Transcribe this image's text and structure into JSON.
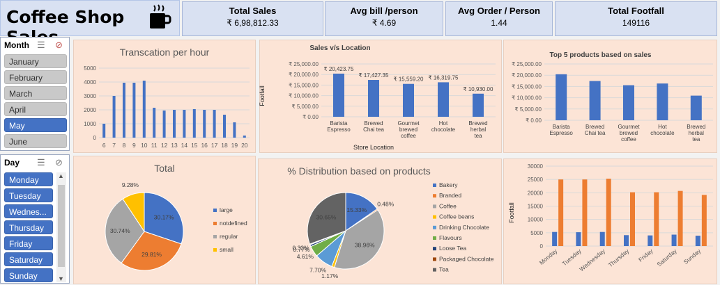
{
  "app": {
    "title": "Coffee Shop Sales"
  },
  "kpis": [
    {
      "label": "Total Sales",
      "value": "₹ 6,98,812.33"
    },
    {
      "label": "Avg bill /person",
      "value": "₹ 4.69"
    },
    {
      "label": "Avg Order / Person",
      "value": "1.44"
    },
    {
      "label": "Total Footfall",
      "value": "149116"
    }
  ],
  "month_slicer": {
    "header": "Month",
    "items": [
      {
        "label": "January",
        "selected": false
      },
      {
        "label": "February",
        "selected": false
      },
      {
        "label": "March",
        "selected": false
      },
      {
        "label": "April",
        "selected": false
      },
      {
        "label": "May",
        "selected": true
      },
      {
        "label": "June",
        "selected": false
      }
    ]
  },
  "day_slicer": {
    "header": "Day",
    "items": [
      {
        "label": "Monday",
        "selected": true
      },
      {
        "label": "Tuesday",
        "selected": true
      },
      {
        "label": "Wednes...",
        "selected": true
      },
      {
        "label": "Thursday",
        "selected": true
      },
      {
        "label": "Friday",
        "selected": true
      },
      {
        "label": "Saturday",
        "selected": true
      },
      {
        "label": "Sunday",
        "selected": true
      }
    ]
  },
  "colors": {
    "bar_blue": "#4472c4",
    "bar_orange": "#ed7d31",
    "panel_bg": "#fce4d6",
    "kpi_bg": "#d9e1f2"
  },
  "chart_data": [
    {
      "type": "bar",
      "title": "Transcation per hour",
      "categories": [
        "6",
        "7",
        "8",
        "9",
        "10",
        "11",
        "12",
        "13",
        "14",
        "15",
        "16",
        "17",
        "18",
        "19",
        "20"
      ],
      "values": [
        1000,
        3000,
        3950,
        3950,
        4100,
        2150,
        1950,
        2000,
        2000,
        2050,
        2000,
        2000,
        1650,
        1100,
        150
      ],
      "ylim": [
        0,
        5000
      ],
      "yticks": [
        "0",
        "1000",
        "2000",
        "3000",
        "4000",
        "5000"
      ]
    },
    {
      "type": "bar",
      "title": "Sales v/s Location",
      "xlabel": "Store Location",
      "ylabel": "Footfall",
      "categories": [
        "Barista Espresso",
        "Brewed Chai tea",
        "Gourmet brewed coffee",
        "Hot chocolate",
        "Brewed herbal tea"
      ],
      "values": [
        20423.75,
        17427.35,
        15559.2,
        16319.75,
        10930.0
      ],
      "data_labels": [
        "₹ 20,423.75",
        "₹ 17,427.35",
        "₹ 15,559.20",
        "₹ 16,319.75",
        "₹ 10,930.00"
      ],
      "ylim": [
        0,
        25000
      ],
      "yticks": [
        "₹ 0.00",
        "₹ 5,000.00",
        "₹ 10,000.00",
        "₹ 15,000.00",
        "₹ 20,000.00",
        "₹ 25,000.00"
      ]
    },
    {
      "type": "bar",
      "title": "Top 5 products based on sales",
      "categories": [
        "Barista Espresso",
        "Brewed Chai tea",
        "Gourmet brewed coffee",
        "Hot chocolate",
        "Brewed herbal tea"
      ],
      "values": [
        20423.75,
        17427.35,
        15559.2,
        16319.75,
        10930.0
      ],
      "ylim": [
        0,
        25000
      ],
      "yticks": [
        "₹ 0.00",
        "₹ 5,000.00",
        "₹ 10,000.00",
        "₹ 15,000.00",
        "₹ 20,000.00",
        "₹ 25,000.00"
      ]
    },
    {
      "type": "pie",
      "title": "Total",
      "labels": [
        "large",
        "notdefined",
        "regular",
        "small"
      ],
      "values": [
        30.17,
        29.81,
        30.74,
        9.28
      ],
      "data_labels": [
        "30.17%",
        "29.81%",
        "30.74%",
        "9.28%"
      ],
      "colors": [
        "#4472c4",
        "#ed7d31",
        "#a5a5a5",
        "#ffc000"
      ],
      "legend": "right"
    },
    {
      "type": "pie",
      "title": "% Distribution based on products",
      "labels": [
        "Bakery",
        "Branded",
        "Coffee",
        "Coffee beans",
        "Drinking Chocolate",
        "Flavours",
        "Loose Tea",
        "Packaged Chocolate",
        "Tea"
      ],
      "values": [
        15.33,
        0.48,
        38.96,
        1.17,
        7.7,
        4.61,
        0.77,
        0.32,
        30.65
      ],
      "data_labels": [
        "15.33%",
        "0.48%",
        "38.96%",
        "1.17%",
        "7.70%",
        "4.61%",
        "0.77%",
        "0.32%",
        "30.65%"
      ],
      "colors": [
        "#4472c4",
        "#ed7d31",
        "#a5a5a5",
        "#ffc000",
        "#5b9bd5",
        "#70ad47",
        "#264478",
        "#9e480e",
        "#636363"
      ],
      "legend": "right"
    },
    {
      "type": "bar",
      "ylabel": "Footfall",
      "categories": [
        "Monday",
        "Tuesday",
        "Wednesday",
        "Thursday",
        "Friday",
        "Saturday",
        "Sunday"
      ],
      "series": [
        {
          "values": [
            5300,
            5200,
            5300,
            4100,
            4000,
            4300,
            3900
          ],
          "color": "#4472c4"
        },
        {
          "values": [
            25000,
            25000,
            25300,
            20200,
            20200,
            20700,
            19200
          ],
          "color": "#ed7d31"
        }
      ],
      "ylim": [
        0,
        30000
      ],
      "yticks": [
        "0",
        "5000",
        "10000",
        "15000",
        "20000",
        "25000",
        "30000"
      ]
    }
  ]
}
